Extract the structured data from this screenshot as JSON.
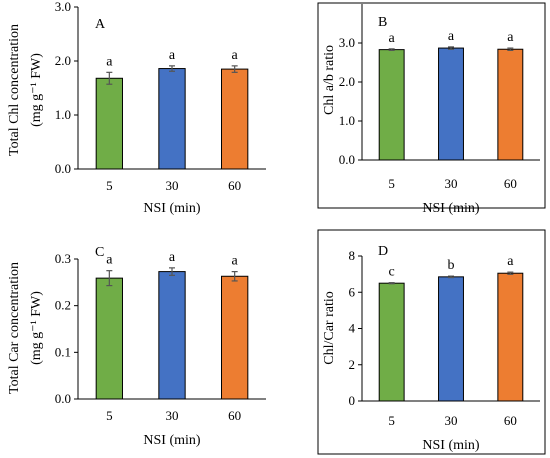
{
  "chart_data": [
    {
      "type": "bar",
      "panel": "A",
      "categories": [
        "5",
        "30",
        "60"
      ],
      "values": [
        1.68,
        1.86,
        1.85
      ],
      "errors": [
        0.11,
        0.05,
        0.06
      ],
      "significance": [
        "a",
        "a",
        "a"
      ],
      "colors": [
        "#70AD47",
        "#4472C4",
        "#ED7D31"
      ],
      "xlabel": "NSI (min)",
      "ylabel_line1": "Total Chl concentration",
      "ylabel_line2": "(mg g⁻¹ FW)",
      "ylim": [
        0,
        3
      ],
      "yticks": [
        0,
        1,
        2,
        3
      ],
      "ytick_labels": [
        "0.0",
        "1.0",
        "2.0",
        "3.0"
      ]
    },
    {
      "type": "bar",
      "panel": "B",
      "categories": [
        "5",
        "30",
        "60"
      ],
      "values": [
        2.83,
        2.87,
        2.84
      ],
      "errors": [
        0.02,
        0.03,
        0.03
      ],
      "significance": [
        "a",
        "a",
        "a"
      ],
      "colors": [
        "#70AD47",
        "#4472C4",
        "#ED7D31"
      ],
      "xlabel": "NSI (min)",
      "ylabel_line1": "Chl a/b ratio",
      "ylabel_line2": "",
      "ylim": [
        0,
        4
      ],
      "yticks": [
        0,
        1,
        2,
        3
      ],
      "ytick_labels": [
        "0.0",
        "1.0",
        "2.0",
        "3.0"
      ]
    },
    {
      "type": "bar",
      "panel": "C",
      "categories": [
        "5",
        "30",
        "60"
      ],
      "values": [
        0.259,
        0.273,
        0.263
      ],
      "errors": [
        0.016,
        0.008,
        0.01
      ],
      "significance": [
        "a",
        "a",
        "a"
      ],
      "colors": [
        "#70AD47",
        "#4472C4",
        "#ED7D31"
      ],
      "xlabel": "NSI (min)",
      "ylabel_line1": "Total Car concentration",
      "ylabel_line2": "(mg g⁻¹ FW)",
      "ylim": [
        0,
        0.3
      ],
      "yticks": [
        0,
        0.1,
        0.2,
        0.3
      ],
      "ytick_labels": [
        "0.0",
        "0.1",
        "0.2",
        "0.3"
      ]
    },
    {
      "type": "bar",
      "panel": "D",
      "categories": [
        "5",
        "30",
        "60"
      ],
      "values": [
        6.5,
        6.85,
        7.05
      ],
      "errors": [
        0.03,
        0.04,
        0.06
      ],
      "significance": [
        "c",
        "b",
        "a"
      ],
      "colors": [
        "#70AD47",
        "#4472C4",
        "#ED7D31"
      ],
      "xlabel": "NSI (min)",
      "ylabel_line1": "Chl/Car ratio",
      "ylabel_line2": "",
      "ylim": [
        0,
        8
      ],
      "yticks": [
        0,
        2,
        4,
        6,
        8
      ],
      "ytick_labels": [
        "0",
        "2",
        "4",
        "6",
        "8"
      ]
    }
  ]
}
